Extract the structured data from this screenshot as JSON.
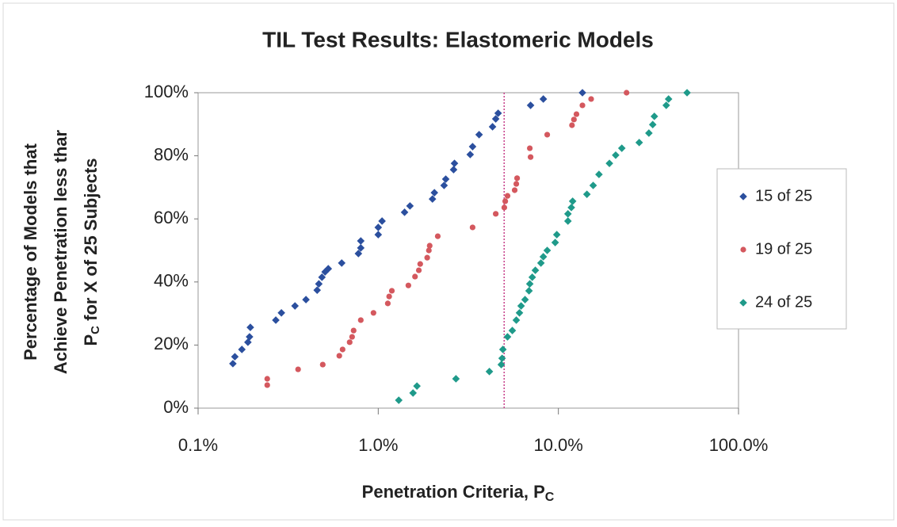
{
  "chart_data": {
    "type": "scatter",
    "title": "TIL Test Results: Elastomeric Models",
    "x_label": "Penetration Criteria, P",
    "x_label_sub": "C",
    "y_label_lines": [
      "Percentage of Models that",
      "Achieve  Penetration less thar"
    ],
    "y_label_line3": {
      "main": "P",
      "sub": "C",
      "rest": " for X of 25 Subjects"
    },
    "x_scale": "log",
    "xlim": [
      0.1,
      100
    ],
    "xticks": [
      {
        "value": 0.1,
        "label": "0.1%"
      },
      {
        "value": 1,
        "label": "1.0%"
      },
      {
        "value": 10,
        "label": "10.0%"
      },
      {
        "value": 100,
        "label": "100.0%"
      }
    ],
    "ylim": [
      0,
      100
    ],
    "yticks": [
      {
        "value": 0,
        "label": "0%"
      },
      {
        "value": 20,
        "label": "20%"
      },
      {
        "value": 40,
        "label": "40%"
      },
      {
        "value": 60,
        "label": "60%"
      },
      {
        "value": 80,
        "label": "80%"
      },
      {
        "value": 100,
        "label": "100%"
      }
    ],
    "reference_x": 5,
    "reference_color": "#c8408a",
    "legend": "right",
    "series": [
      {
        "name": "15 of 25",
        "color": "#2b4f9e",
        "marker": "diamond",
        "x": [
          0.156,
          0.16,
          0.175,
          0.189,
          0.193,
          0.195,
          0.27,
          0.29,
          0.345,
          0.397,
          0.458,
          0.468,
          0.487,
          0.507,
          0.528,
          0.627,
          0.776,
          0.8,
          0.8,
          1.0,
          1.0,
          1.05,
          1.4,
          1.5,
          2.0,
          2.05,
          2.32,
          2.37,
          2.62,
          2.65,
          3.24,
          3.34,
          3.63,
          4.31,
          4.49,
          4.63,
          7.01,
          8.25,
          13.6
        ],
        "values": [
          14.1,
          16.3,
          18.6,
          20.9,
          22.6,
          25.6,
          27.9,
          30.2,
          32.4,
          34.4,
          37.4,
          39.4,
          41.5,
          43.2,
          44.2,
          46.0,
          49.0,
          50.8,
          53.0,
          55.0,
          57.3,
          59.3,
          62.1,
          64.1,
          66.3,
          68.3,
          70.6,
          72.6,
          75.6,
          77.6,
          80.4,
          82.9,
          86.7,
          89.2,
          91.7,
          93.5,
          96.0,
          98.0,
          100
        ]
      },
      {
        "name": "19 of 25",
        "color": "#d4585e",
        "marker": "circle",
        "x": [
          0.242,
          0.242,
          0.359,
          0.492,
          0.608,
          0.634,
          0.694,
          0.716,
          0.73,
          0.8,
          0.941,
          1.13,
          1.15,
          1.19,
          1.47,
          1.6,
          1.68,
          1.71,
          1.87,
          1.91,
          1.93,
          2.14,
          3.34,
          4.49,
          5.01,
          5.07,
          5.22,
          5.72,
          5.84,
          5.9,
          7.01,
          6.94,
          8.67,
          11.9,
          12.2,
          12.6,
          13.6,
          15.2,
          23.9
        ],
        "values": [
          7.3,
          9.3,
          12.3,
          13.8,
          16.6,
          18.6,
          20.9,
          22.6,
          24.6,
          27.9,
          30.2,
          33.2,
          35.4,
          37.2,
          38.9,
          41.7,
          43.7,
          45.7,
          47.7,
          50.0,
          51.5,
          54.5,
          57.3,
          61.6,
          63.6,
          65.6,
          67.3,
          69.1,
          71.1,
          72.9,
          79.6,
          82.4,
          86.7,
          89.7,
          91.5,
          93.2,
          96.0,
          98.0,
          100
        ]
      },
      {
        "name": "24 of 25",
        "color": "#1f9a8a",
        "marker": "diamond",
        "x": [
          1.3,
          1.56,
          1.64,
          2.7,
          4.14,
          4.82,
          4.87,
          4.92,
          5.22,
          5.55,
          5.84,
          6.08,
          6.21,
          6.53,
          6.87,
          6.94,
          7.16,
          7.45,
          8.0,
          8.25,
          8.67,
          9.6,
          9.8,
          11.3,
          11.3,
          11.8,
          12.0,
          14.4,
          15.6,
          16.8,
          19.2,
          20.8,
          22.5,
          28.1,
          31.8,
          33.4,
          34.1,
          39.7,
          40.9,
          51.8
        ],
        "values": [
          2.5,
          4.8,
          7.0,
          9.3,
          11.6,
          13.8,
          15.8,
          18.6,
          22.6,
          24.6,
          27.9,
          30.2,
          32.4,
          34.4,
          37.2,
          39.4,
          41.5,
          43.7,
          46.0,
          48.0,
          50.0,
          52.5,
          55.0,
          59.3,
          61.6,
          63.6,
          65.6,
          67.8,
          70.6,
          74.1,
          77.6,
          80.2,
          82.4,
          84.2,
          87.2,
          89.9,
          92.5,
          96.0,
          98.0,
          100
        ]
      }
    ]
  }
}
